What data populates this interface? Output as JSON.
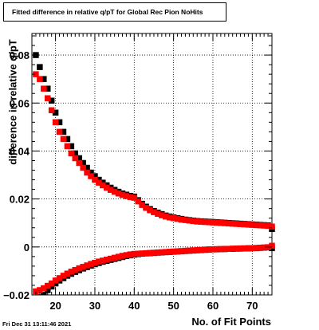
{
  "chart_data": {
    "type": "scatter",
    "title": "Fitted difference in relative q/pT for Global Rec Pion NoHits",
    "xlabel": "No. of Fit Points",
    "ylabel": "difference in relative q/pT",
    "xlim": [
      14,
      75
    ],
    "ylim": [
      -0.02,
      0.089
    ],
    "x_ticks": [
      20,
      30,
      40,
      50,
      60,
      70
    ],
    "x_tick_labels": [
      "20",
      "30",
      "40",
      "50",
      "60",
      "70"
    ],
    "y_ticks": [
      -0.02,
      0,
      0.02,
      0.04,
      0.06,
      0.08
    ],
    "y_tick_labels": [
      "−0.02",
      "0",
      "0.02",
      "0.04",
      "0.06",
      "0.08"
    ],
    "grid": true,
    "series": [
      {
        "color": "#000000",
        "marker": "square",
        "x": [
          15,
          16,
          17,
          18,
          19,
          20,
          21,
          22,
          23,
          24,
          25,
          26,
          27,
          28,
          29,
          30,
          31,
          32,
          33,
          34,
          35,
          36,
          37,
          38,
          39,
          40,
          41,
          42,
          43,
          44,
          45,
          46,
          47,
          48,
          49,
          50,
          51,
          52,
          53,
          54,
          55,
          56,
          57,
          58,
          59,
          60,
          61,
          62,
          63,
          64,
          65,
          66,
          67,
          68,
          69,
          70,
          71,
          72,
          73,
          74,
          75
        ],
        "values": [
          0.08,
          0.075,
          0.07,
          0.066,
          0.061,
          0.056,
          0.052,
          0.048,
          0.045,
          0.042,
          0.039,
          0.037,
          0.035,
          0.033,
          0.031,
          0.0295,
          0.028,
          0.0268,
          0.0257,
          0.0247,
          0.0238,
          0.023,
          0.0223,
          0.0218,
          0.0213,
          0.021,
          0.0195,
          0.018,
          0.0168,
          0.0158,
          0.015,
          0.0143,
          0.0137,
          0.0131,
          0.0127,
          0.0123,
          0.012,
          0.0117,
          0.0114,
          0.0112,
          0.011,
          0.0108,
          0.0107,
          0.0106,
          0.0105,
          0.0104,
          0.0103,
          0.0102,
          0.0101,
          0.01,
          0.0099,
          0.0098,
          0.0097,
          0.0096,
          0.0095,
          0.0094,
          0.0093,
          0.0092,
          0.0091,
          0.009,
          0.0075
        ]
      },
      {
        "color": "#ff0000",
        "marker": "square",
        "x": [
          15,
          16,
          17,
          18,
          19,
          20,
          21,
          22,
          23,
          24,
          25,
          26,
          27,
          28,
          29,
          30,
          31,
          32,
          33,
          34,
          35,
          36,
          37,
          38,
          39,
          40,
          41,
          42,
          43,
          44,
          45,
          46,
          47,
          48,
          49,
          50,
          51,
          52,
          53,
          54,
          55,
          56,
          57,
          58,
          59,
          60,
          61,
          62,
          63,
          64,
          65,
          66,
          67,
          68,
          69,
          70,
          71,
          72,
          73,
          74,
          75
        ],
        "values": [
          0.072,
          0.07,
          0.066,
          0.062,
          0.057,
          0.052,
          0.048,
          0.045,
          0.042,
          0.039,
          0.037,
          0.035,
          0.033,
          0.031,
          0.0295,
          0.028,
          0.0268,
          0.0257,
          0.0247,
          0.0238,
          0.023,
          0.0223,
          0.0217,
          0.0212,
          0.0208,
          0.0205,
          0.019,
          0.0175,
          0.0163,
          0.0153,
          0.0145,
          0.0138,
          0.0132,
          0.0127,
          0.0123,
          0.012,
          0.0117,
          0.0114,
          0.0112,
          0.011,
          0.0108,
          0.0106,
          0.0105,
          0.0104,
          0.0103,
          0.0102,
          0.0101,
          0.01,
          0.0099,
          0.0098,
          0.0097,
          0.0096,
          0.0095,
          0.0094,
          0.0093,
          0.0092,
          0.0091,
          0.009,
          0.0089,
          0.0088,
          0.0085
        ]
      },
      {
        "color": "#000000",
        "marker": "square",
        "x": [
          15,
          16,
          17,
          18,
          19,
          20,
          21,
          22,
          23,
          24,
          25,
          26,
          27,
          28,
          29,
          30,
          31,
          32,
          33,
          34,
          35,
          36,
          37,
          38,
          39,
          40,
          41,
          42,
          43,
          44,
          45,
          46,
          47,
          48,
          49,
          50,
          51,
          52,
          53,
          54,
          55,
          56,
          57,
          58,
          59,
          60,
          61,
          62,
          63,
          64,
          65,
          66,
          67,
          68,
          69,
          70,
          71,
          72,
          73,
          74,
          75
        ],
        "values": [
          -0.023,
          -0.021,
          -0.02,
          -0.018,
          -0.0165,
          -0.0152,
          -0.014,
          -0.013,
          -0.012,
          -0.0112,
          -0.0104,
          -0.0097,
          -0.009,
          -0.0084,
          -0.0078,
          -0.0072,
          -0.0067,
          -0.0062,
          -0.0058,
          -0.0054,
          -0.005,
          -0.0046,
          -0.0042,
          -0.0038,
          -0.0035,
          -0.0032,
          -0.003,
          -0.0028,
          -0.0027,
          -0.0026,
          -0.0025,
          -0.0024,
          -0.0023,
          -0.0022,
          -0.0021,
          -0.002,
          -0.0019,
          -0.0018,
          -0.0017,
          -0.0016,
          -0.0015,
          -0.0014,
          -0.0013,
          -0.0012,
          -0.0011,
          -0.001,
          -0.001,
          -0.0009,
          -0.0009,
          -0.0008,
          -0.0008,
          -0.0007,
          -0.0007,
          -0.0006,
          -0.0006,
          -0.0005,
          -0.0005,
          -0.0004,
          -0.0003,
          -0.0002,
          -0.0005
        ]
      },
      {
        "color": "#ff0000",
        "marker": "square",
        "x": [
          15,
          16,
          17,
          18,
          19,
          20,
          21,
          22,
          23,
          24,
          25,
          26,
          27,
          28,
          29,
          30,
          31,
          32,
          33,
          34,
          35,
          36,
          37,
          38,
          39,
          40,
          41,
          42,
          43,
          44,
          45,
          46,
          47,
          48,
          49,
          50,
          51,
          52,
          53,
          54,
          55,
          56,
          57,
          58,
          59,
          60,
          61,
          62,
          63,
          64,
          65,
          66,
          67,
          68,
          69,
          70,
          71,
          72,
          73,
          74,
          75
        ],
        "values": [
          -0.0185,
          -0.018,
          -0.0172,
          -0.0162,
          -0.0152,
          -0.014,
          -0.013,
          -0.012,
          -0.0111,
          -0.0103,
          -0.0096,
          -0.0089,
          -0.0083,
          -0.0077,
          -0.0071,
          -0.0066,
          -0.0061,
          -0.0057,
          -0.0053,
          -0.0049,
          -0.0045,
          -0.0041,
          -0.0037,
          -0.0034,
          -0.0031,
          -0.0029,
          -0.0028,
          -0.0027,
          -0.0026,
          -0.0025,
          -0.0024,
          -0.0023,
          -0.0022,
          -0.0021,
          -0.002,
          -0.0019,
          -0.0018,
          -0.0017,
          -0.0016,
          -0.0015,
          -0.0014,
          -0.0013,
          -0.0012,
          -0.0011,
          -0.001,
          -0.001,
          -0.0009,
          -0.0009,
          -0.0008,
          -0.0008,
          -0.0007,
          -0.0007,
          -0.0006,
          -0.0006,
          -0.0005,
          -0.0005,
          -0.0004,
          -0.0003,
          -0.0002,
          -0.0001,
          0.0005
        ]
      }
    ]
  },
  "footer": {
    "timestamp": "Fri Dec 31 13:11:46 2021"
  }
}
